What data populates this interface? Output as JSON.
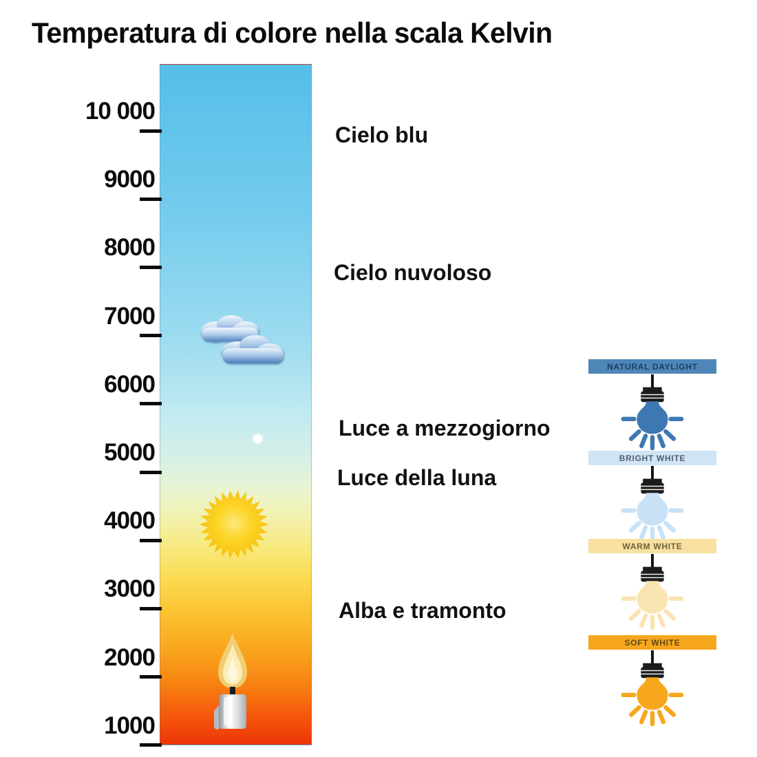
{
  "title": "Temperatura di colore nella scala Kelvin",
  "kelvin_scale": {
    "unit": "Kelvin",
    "tick_labels": [
      "10 000",
      "9000",
      "8000",
      "7000",
      "6000",
      "5000",
      "4000",
      "3000",
      "2000",
      "1000"
    ],
    "gradient": [
      {
        "pos": 0,
        "color": "#55bee9"
      },
      {
        "pos": 21,
        "color": "#72cbed"
      },
      {
        "pos": 41,
        "color": "#9edcf0"
      },
      {
        "pos": 50,
        "color": "#bce9f2"
      },
      {
        "pos": 57,
        "color": "#d4efe9"
      },
      {
        "pos": 62,
        "color": "#e7f4d4"
      },
      {
        "pos": 66,
        "color": "#f2f2b4"
      },
      {
        "pos": 71,
        "color": "#f8ea7f"
      },
      {
        "pos": 76,
        "color": "#fbd94e"
      },
      {
        "pos": 81,
        "color": "#fbc030"
      },
      {
        "pos": 86,
        "color": "#f9a61e"
      },
      {
        "pos": 91,
        "color": "#f78312"
      },
      {
        "pos": 96,
        "color": "#f4560b"
      },
      {
        "pos": 100,
        "color": "#ee3509"
      }
    ]
  },
  "annotations": [
    {
      "text": "Cielo blu"
    },
    {
      "text": "Cielo nuvoloso"
    },
    {
      "text": "Luce a mezzogiorno"
    },
    {
      "text": "Luce della luna"
    },
    {
      "text": "Alba e tramonto"
    }
  ],
  "bar_icons": [
    {
      "name": "clouds-icon"
    },
    {
      "name": "moon-dot-icon"
    },
    {
      "name": "sun-icon"
    },
    {
      "name": "candle-icon"
    }
  ],
  "white_types": [
    {
      "label": "NATURAL DAYLIGHT",
      "banner_bg": "#4e86b8",
      "label_color": "#1c3f63",
      "bulb_color": "#3e78b3"
    },
    {
      "label": "BRIGHT WHITE",
      "banner_bg": "#cfe4f5",
      "label_color": "#55606c",
      "bulb_color": "#c8e1f6"
    },
    {
      "label": "WARM WHITE",
      "banner_bg": "#f7e0a0",
      "label_color": "#6e5f3a",
      "bulb_color": "#f9e5b2"
    },
    {
      "label": "SOFT WHITE",
      "banner_bg": "#f6a71d",
      "label_color": "#5e4a14",
      "bulb_color": "#f6a71d"
    }
  ]
}
